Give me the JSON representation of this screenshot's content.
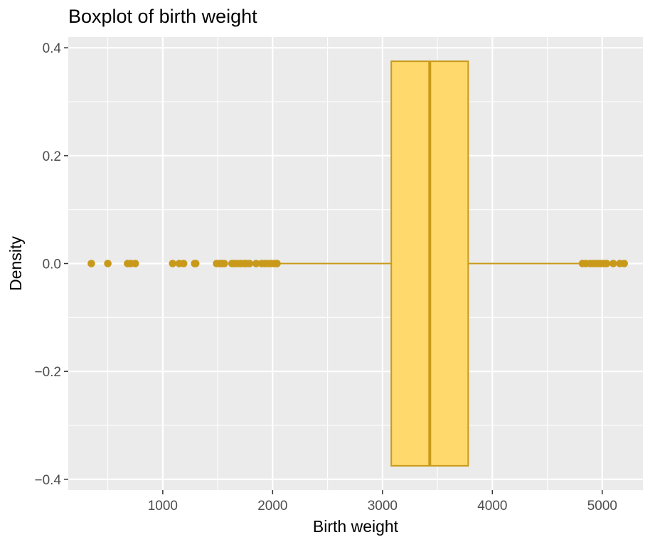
{
  "chart_data": {
    "type": "boxplot",
    "title": "Boxplot of birth weight",
    "xlabel": "Birth weight",
    "ylabel": "Density",
    "xlim": [
      140,
      5370
    ],
    "ylim": [
      -0.42,
      0.42
    ],
    "x_ticks": [
      1000,
      2000,
      3000,
      4000,
      5000
    ],
    "x_tick_labels": [
      "1000",
      "2000",
      "3000",
      "4000",
      "5000"
    ],
    "y_ticks": [
      -0.4,
      -0.2,
      0.0,
      0.2,
      0.4
    ],
    "y_tick_labels": [
      "−0.4",
      "−0.2",
      "0.0",
      "0.2",
      "0.4"
    ],
    "grid": true,
    "legend": "none",
    "box": {
      "y_center": 0.0,
      "y_half_width": 0.375,
      "whisker_low": 2050,
      "q1": 3080,
      "median": 3430,
      "q3": 3780,
      "whisker_high": 4800
    },
    "outliers": [
      350,
      500,
      680,
      710,
      750,
      1090,
      1150,
      1190,
      1290,
      1300,
      1490,
      1520,
      1540,
      1560,
      1630,
      1650,
      1680,
      1710,
      1740,
      1760,
      1790,
      1850,
      1900,
      1930,
      1960,
      1990,
      2020,
      2040,
      4820,
      4850,
      4890,
      4920,
      4950,
      4980,
      5010,
      5040,
      5100,
      5160,
      5200
    ],
    "colors": {
      "panel_background": "#ebebeb",
      "grid_major": "#ffffff",
      "box_fill": "#ffd96b",
      "box_outline": "#c99a1a",
      "outlier": "#c99a1a",
      "tick_text": "#4d4d4d",
      "tick_mark": "#333333"
    }
  }
}
